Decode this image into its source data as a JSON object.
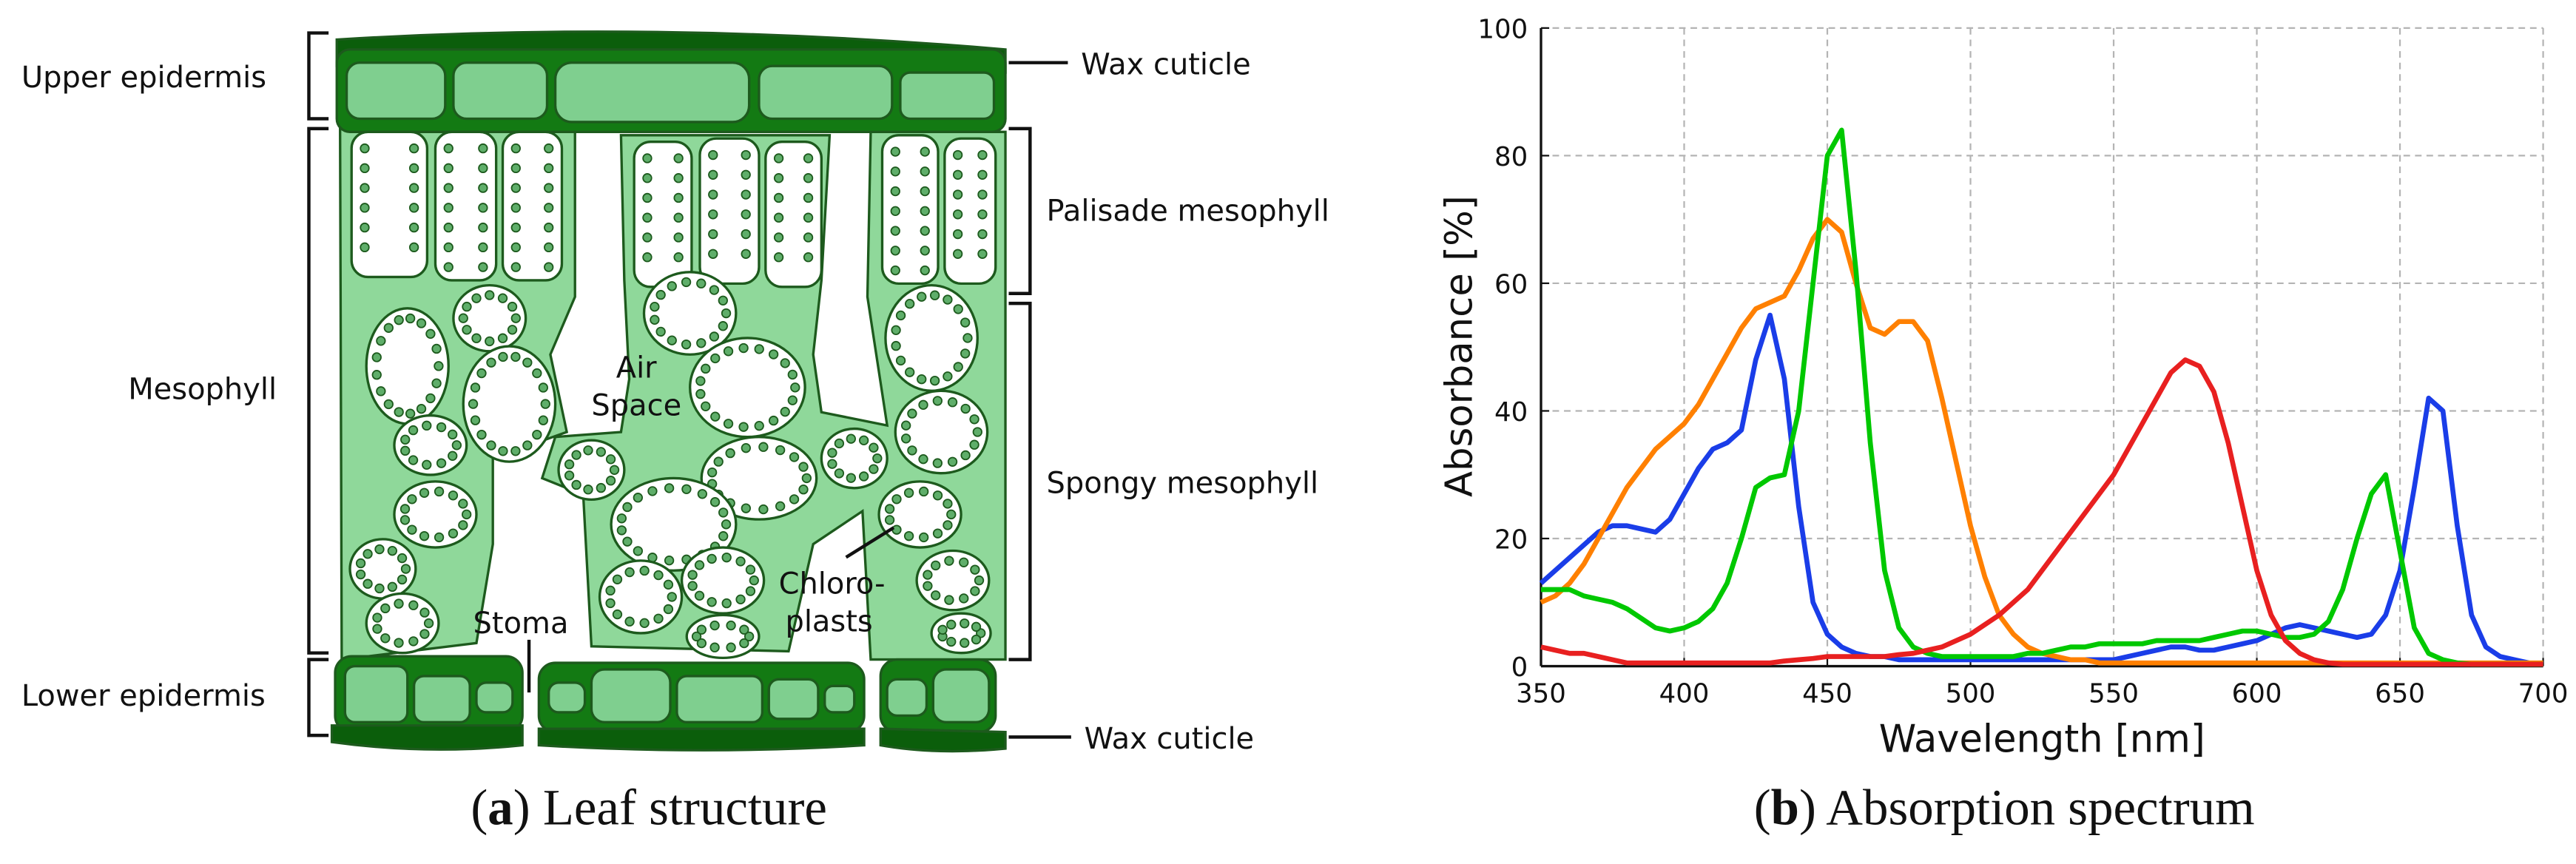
{
  "diagram": {
    "labels": {
      "upper_epidermis": "Upper epidermis",
      "wax_cuticle_top": "Wax cuticle",
      "palisade": "Palisade mesophyll",
      "mesophyll": "Mesophyll",
      "air": "Air",
      "space": "Space",
      "spongy": "Spongy mesophyll",
      "chloro": "Chloro-",
      "plasts": "plasts",
      "stoma": "Stoma",
      "lower_epidermis": "Lower epidermis",
      "wax_cuticle_bottom": "Wax cuticle"
    },
    "caption": {
      "open": "(",
      "letter": "a",
      "rest": ") Leaf structure"
    }
  },
  "chart_data": {
    "type": "line",
    "caption": {
      "open": "(",
      "letter": "b",
      "rest": ") Absorption spectrum"
    },
    "x_label": "Wavelength [nm]",
    "y_label": "Absorbance [%]",
    "x": [
      350,
      355,
      360,
      365,
      370,
      375,
      380,
      385,
      390,
      395,
      400,
      405,
      410,
      415,
      420,
      425,
      430,
      435,
      440,
      445,
      450,
      455,
      460,
      465,
      470,
      475,
      480,
      485,
      490,
      495,
      500,
      505,
      510,
      515,
      520,
      525,
      530,
      535,
      540,
      545,
      550,
      555,
      560,
      565,
      570,
      575,
      580,
      585,
      590,
      595,
      600,
      605,
      610,
      615,
      620,
      625,
      630,
      635,
      640,
      645,
      650,
      655,
      660,
      665,
      670,
      675,
      680,
      685,
      690,
      695,
      700
    ],
    "series": [
      {
        "color": "#1a3de8",
        "values": [
          13,
          15,
          17,
          19,
          21,
          22,
          22,
          21.5,
          21,
          23,
          27,
          31,
          34,
          35,
          37,
          48,
          55,
          45,
          25,
          10,
          5,
          3,
          2,
          1.5,
          1.5,
          1,
          1,
          1,
          1,
          1,
          1,
          1,
          1,
          1,
          1,
          1,
          1,
          1,
          1,
          1,
          1,
          1.5,
          2,
          2.5,
          3,
          3,
          2.5,
          2.5,
          3,
          3.5,
          4,
          5,
          6,
          6.5,
          6,
          5.5,
          5,
          4.5,
          5,
          8,
          15,
          28,
          42,
          40,
          22,
          8,
          3,
          1.5,
          1,
          0.5,
          0.3
        ]
      },
      {
        "color": "#ff8000",
        "values": [
          10,
          11,
          13,
          16,
          20,
          24,
          28,
          31,
          34,
          36,
          38,
          41,
          45,
          49,
          53,
          56,
          57,
          58,
          62,
          67,
          70,
          68,
          60,
          53,
          52,
          54,
          54,
          51,
          42,
          32,
          22,
          14,
          8,
          5,
          3,
          2,
          1.5,
          1,
          1,
          0.5,
          0.5,
          0.5,
          0.5,
          0.5,
          0.5,
          0.5,
          0.5,
          0.5,
          0.5,
          0.5,
          0.5,
          0.5,
          0.5,
          0.5,
          0.5,
          0.5,
          0.5,
          0.5,
          0.5,
          0.5,
          0.5,
          0.5,
          0.5,
          0.5,
          0.5,
          0.5,
          0.5,
          0.5,
          0.5,
          0.5,
          0.5
        ]
      },
      {
        "color": "#00c800",
        "values": [
          12,
          12,
          12,
          11,
          10.5,
          10,
          9,
          7.5,
          6,
          5.5,
          6,
          7,
          9,
          13,
          20,
          28,
          29.5,
          30,
          40,
          60,
          80,
          84,
          62,
          35,
          15,
          6,
          3,
          2,
          1.5,
          1.5,
          1.5,
          1.5,
          1.5,
          1.5,
          2,
          2,
          2.5,
          3,
          3,
          3.5,
          3.5,
          3.5,
          3.5,
          4,
          4,
          4,
          4,
          4.5,
          5,
          5.5,
          5.5,
          5,
          4.5,
          4.5,
          5,
          7,
          12,
          20,
          27,
          30,
          18,
          6,
          2,
          1,
          0.5,
          0.3,
          0.3,
          0.3,
          0.3,
          0.3,
          0.3
        ]
      },
      {
        "color": "#e82020",
        "values": [
          3,
          2.5,
          2,
          2,
          1.5,
          1,
          0.5,
          0.5,
          0.5,
          0.5,
          0.5,
          0.5,
          0.5,
          0.5,
          0.5,
          0.5,
          0.5,
          0.8,
          1,
          1.2,
          1.5,
          1.5,
          1.5,
          1.5,
          1.5,
          1.8,
          2,
          2.5,
          3,
          4,
          5,
          6.5,
          8,
          10,
          12,
          15,
          18,
          21,
          24,
          27,
          30,
          34,
          38,
          42,
          46,
          48,
          47,
          43,
          35,
          25,
          15,
          8,
          4,
          2,
          1,
          0.5,
          0.3,
          0.3,
          0.3,
          0.3,
          0.3,
          0.3,
          0.3,
          0.3,
          0.3,
          0.3,
          0.3,
          0.3,
          0.3,
          0.3,
          0.3
        ]
      }
    ],
    "xlim": [
      350,
      700
    ],
    "ylim": [
      0,
      100
    ],
    "xticks": [
      350,
      400,
      450,
      500,
      550,
      600,
      650,
      700
    ],
    "yticks": [
      0,
      20,
      40,
      60,
      80,
      100
    ],
    "grid": true
  }
}
